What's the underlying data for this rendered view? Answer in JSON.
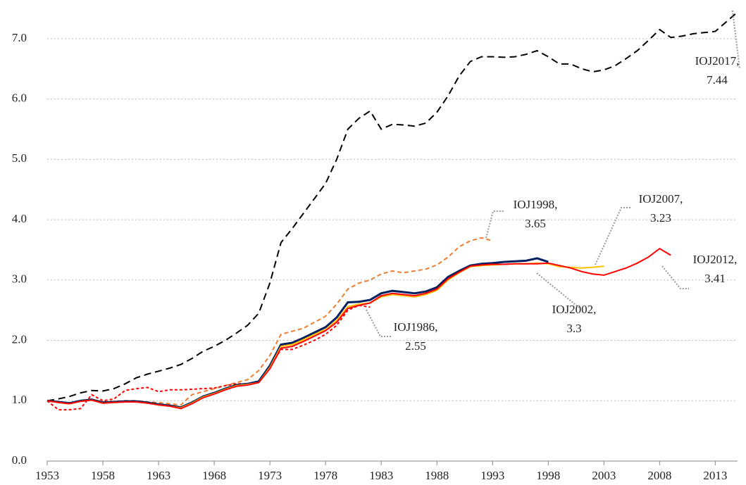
{
  "chart_data": {
    "type": "line",
    "x": [
      1953,
      1954,
      1955,
      1956,
      1957,
      1958,
      1959,
      1960,
      1961,
      1962,
      1963,
      1964,
      1965,
      1966,
      1967,
      1968,
      1969,
      1970,
      1971,
      1972,
      1973,
      1974,
      1975,
      1976,
      1977,
      1978,
      1979,
      1980,
      1981,
      1982,
      1983,
      1984,
      1985,
      1986,
      1987,
      1988,
      1989,
      1990,
      1991,
      1992,
      1993,
      1994,
      1995,
      1996,
      1997,
      1998,
      1999,
      2000,
      2001,
      2002,
      2003,
      2004,
      2005,
      2006,
      2007,
      2008,
      2009,
      2010,
      2011,
      2012,
      2013,
      2014,
      2015
    ],
    "series": [
      {
        "color": "#000000",
        "dash": "10,6",
        "values": [
          1.0,
          1.03,
          1.07,
          1.13,
          1.17,
          1.16,
          1.2,
          1.28,
          1.38,
          1.44,
          1.49,
          1.54,
          1.6,
          1.7,
          1.82,
          1.9,
          2.0,
          2.12,
          2.25,
          2.45,
          2.95,
          3.62,
          3.85,
          4.1,
          4.35,
          4.6,
          5.0,
          5.5,
          5.68,
          5.8,
          5.5,
          5.58,
          5.57,
          5.55,
          5.6,
          5.78,
          6.05,
          6.38,
          6.62,
          6.7,
          6.7,
          6.69,
          6.7,
          6.74,
          6.8,
          6.7,
          6.58,
          6.58,
          6.5,
          6.45,
          6.48,
          6.55,
          6.67,
          6.8,
          6.97,
          7.15,
          7.02,
          7.04,
          7.08,
          7.1,
          7.12,
          7.28,
          7.44
        ]
      },
      {
        "color": "#ED7D31",
        "dash": "6,4",
        "values": [
          1.0,
          0.98,
          0.96,
          1.0,
          1.02,
          0.98,
          0.99,
          1.0,
          1.0,
          0.98,
          0.97,
          0.95,
          0.93,
          1.1,
          1.15,
          1.2,
          1.25,
          1.3,
          1.35,
          1.5,
          1.75,
          2.1,
          2.15,
          2.2,
          2.3,
          2.4,
          2.6,
          2.85,
          2.95,
          3.0,
          3.1,
          3.15,
          3.12,
          3.15,
          3.18,
          3.25,
          3.38,
          3.55,
          3.65,
          3.7,
          3.65,
          null,
          null,
          null,
          null,
          null,
          null,
          null,
          null,
          null,
          null,
          null,
          null,
          null,
          null,
          null,
          null,
          null,
          null,
          null,
          null,
          null,
          null
        ]
      },
      {
        "color": "#FF0000",
        "dash": "4,3",
        "values": [
          1.0,
          0.85,
          0.85,
          0.87,
          1.1,
          1.0,
          1.03,
          1.17,
          1.2,
          1.22,
          1.15,
          1.18,
          1.18,
          1.19,
          1.2,
          1.21,
          1.25,
          1.28,
          1.28,
          1.32,
          1.55,
          1.85,
          1.85,
          1.92,
          2.0,
          2.1,
          2.25,
          2.5,
          2.58,
          2.55,
          null,
          null,
          null,
          null,
          null,
          null,
          null,
          null,
          null,
          null,
          null,
          null,
          null,
          null,
          null,
          null,
          null,
          null,
          null,
          null,
          null,
          null,
          null,
          null,
          null,
          null,
          null,
          null,
          null,
          null,
          null,
          null,
          null
        ]
      },
      {
        "color": "#002060",
        "dash": "none",
        "values": [
          1.0,
          0.98,
          0.96,
          1.0,
          1.02,
          0.97,
          0.98,
          0.99,
          0.99,
          0.97,
          0.94,
          0.92,
          0.89,
          0.97,
          1.07,
          1.13,
          1.2,
          1.26,
          1.28,
          1.32,
          1.58,
          1.93,
          1.96,
          2.04,
          2.13,
          2.22,
          2.38,
          2.63,
          2.64,
          2.67,
          2.78,
          2.82,
          2.8,
          2.78,
          2.81,
          2.88,
          3.05,
          3.15,
          3.24,
          3.27,
          3.28,
          3.3,
          3.31,
          3.32,
          3.36,
          3.3,
          null,
          null,
          null,
          null,
          null,
          null,
          null,
          null,
          null,
          null,
          null,
          null,
          null,
          null,
          null,
          null,
          null
        ]
      },
      {
        "color": "#FFC000",
        "dash": "none",
        "values": [
          1.0,
          0.97,
          0.95,
          0.99,
          1.01,
          0.96,
          0.97,
          0.98,
          0.98,
          0.96,
          0.93,
          0.91,
          0.88,
          0.96,
          1.06,
          1.12,
          1.19,
          1.25,
          1.27,
          1.3,
          1.55,
          1.9,
          1.93,
          2.01,
          2.1,
          2.18,
          2.33,
          2.56,
          2.6,
          2.62,
          2.72,
          2.76,
          2.74,
          2.72,
          2.76,
          2.83,
          3.0,
          3.12,
          3.22,
          3.24,
          3.25,
          3.26,
          3.27,
          3.27,
          3.28,
          3.27,
          3.22,
          3.21,
          3.2,
          3.21,
          3.23,
          null,
          null,
          null,
          null,
          null,
          null,
          null,
          null,
          null,
          null,
          null,
          null
        ]
      },
      {
        "color": "#FF0000",
        "dash": "none",
        "values": [
          1.0,
          0.97,
          0.95,
          0.99,
          1.01,
          0.96,
          0.97,
          0.98,
          0.98,
          0.96,
          0.93,
          0.91,
          0.87,
          0.95,
          1.05,
          1.11,
          1.18,
          1.24,
          1.26,
          1.3,
          1.53,
          1.87,
          1.9,
          1.98,
          2.07,
          2.16,
          2.3,
          2.53,
          2.58,
          2.62,
          2.74,
          2.78,
          2.76,
          2.74,
          2.78,
          2.85,
          3.02,
          3.13,
          3.23,
          3.25,
          3.26,
          3.26,
          3.27,
          3.27,
          3.27,
          3.28,
          3.24,
          3.2,
          3.14,
          3.1,
          3.08,
          3.14,
          3.2,
          3.28,
          3.38,
          3.52,
          3.41,
          null,
          null,
          null,
          null,
          null,
          null
        ]
      }
    ],
    "annotations": [
      {
        "label": "IOJ2017,",
        "value": 7.44
      },
      {
        "label": "IOJ1998,",
        "value": 3.65
      },
      {
        "label": "IOJ2007,",
        "value": 3.23
      },
      {
        "label": "IOJ2012,",
        "value": 3.41
      },
      {
        "label": "IOJ2002,",
        "value": 3.3
      },
      {
        "label": "IOJ1986,",
        "value": 2.55
      }
    ],
    "xlim": [
      1953,
      2015
    ],
    "xticks": [
      1953,
      1958,
      1963,
      1968,
      1973,
      1978,
      1983,
      1988,
      1993,
      1998,
      2003,
      2008,
      2013
    ],
    "ylim": [
      0,
      7.5
    ],
    "yticks": [
      {
        "value": 0,
        "label": "0.0"
      },
      {
        "value": 1,
        "label": "1.0"
      },
      {
        "value": 2,
        "label": "2.0"
      },
      {
        "value": 3,
        "label": "3.0"
      },
      {
        "value": 4,
        "label": "4.0"
      },
      {
        "value": 5,
        "label": "5.0"
      },
      {
        "value": 6,
        "label": "6.0"
      },
      {
        "value": 7,
        "label": "7.0"
      }
    ],
    "grid": true
  }
}
